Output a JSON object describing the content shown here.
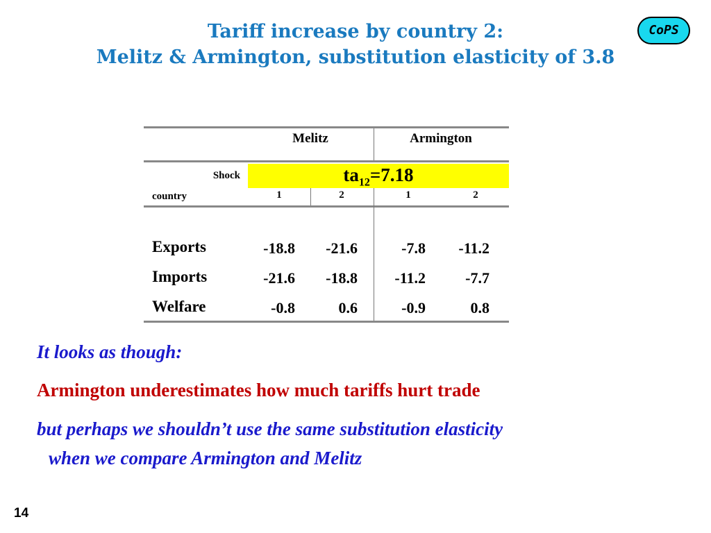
{
  "header": {
    "title_lines": [
      "Tariff increase by country 2:",
      "Melitz & Armington, substitution elasticity of 3.8"
    ],
    "logo": "CoPS"
  },
  "table": {
    "groups": [
      "Melitz",
      "Armington"
    ],
    "shock_label": "Shock",
    "shock": {
      "variable": "ta",
      "subscript": "12",
      "value_text": "=7.18"
    },
    "row_header": "country",
    "columns": [
      "1",
      "2",
      "1",
      "2"
    ],
    "rows": [
      {
        "label": "Exports",
        "values": [
          -18.8,
          -21.6,
          -7.8,
          -11.2
        ]
      },
      {
        "label": "Imports",
        "values": [
          -21.6,
          -18.8,
          -11.2,
          -7.7
        ]
      },
      {
        "label": "Welfare",
        "values": [
          -0.8,
          0.6,
          -0.9,
          0.8
        ]
      }
    ]
  },
  "notes": [
    "It looks as though:",
    "Armington underestimates how much tariffs hurt trade",
    "but perhaps we shouldn’t use the same substitution elasticity",
    "when we compare Armington and Melitz"
  ],
  "page_number": "14"
}
